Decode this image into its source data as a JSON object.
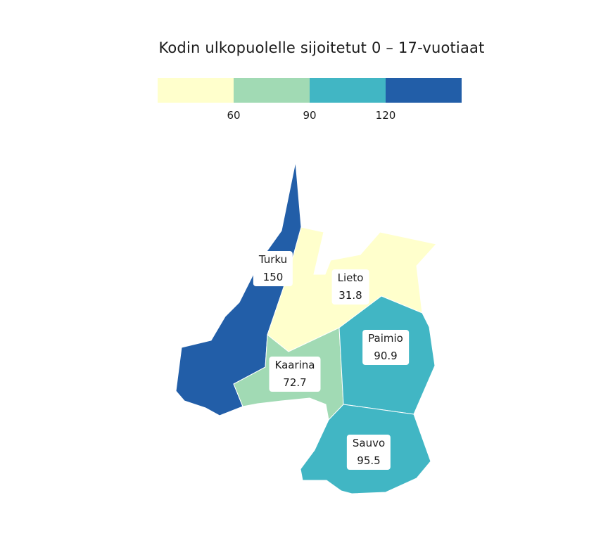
{
  "title": "Kodin ulkopuolelle sijoitetut 0 – 17-vuotiaat",
  "legend": {
    "colors": [
      "#ffffcc",
      "#a1dab4",
      "#41b6c4",
      "#225ea8"
    ],
    "ticks": [
      "60",
      "90",
      "120"
    ]
  },
  "regions": [
    {
      "name": "Turku",
      "value": "150",
      "color": "#225ea8"
    },
    {
      "name": "Lieto",
      "value": "31.8",
      "color": "#ffffcc"
    },
    {
      "name": "Kaarina",
      "value": "72.7",
      "color": "#a1dab4"
    },
    {
      "name": "Paimio",
      "value": "90.9",
      "color": "#41b6c4"
    },
    {
      "name": "Sauvo",
      "value": "95.5",
      "color": "#41b6c4"
    }
  ]
}
